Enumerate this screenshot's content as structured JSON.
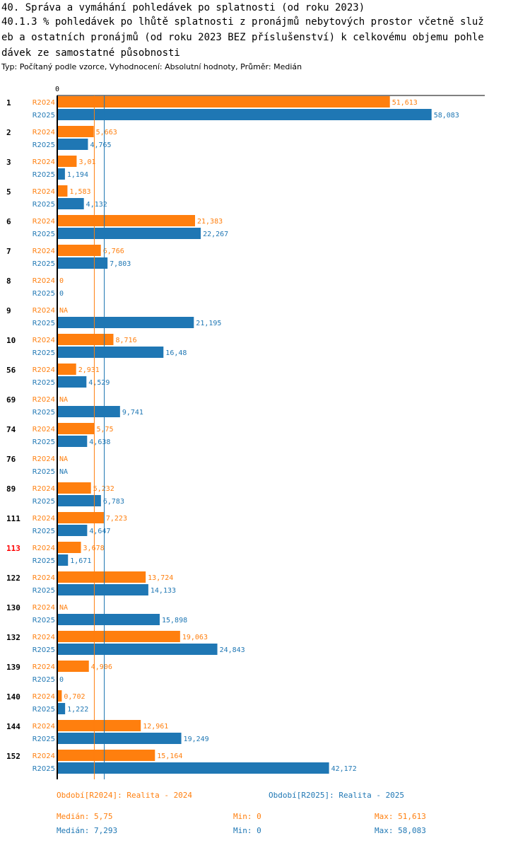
{
  "title_lines": [
    "40. Správa a vymáhání pohledávek po splatnosti (od roku 2023)",
    "40.1.3 % pohledávek po lhůtě splatnosti z pronájmů nebytových prostor včetně služ",
    "eb a ostatních pronájmů (od roku 2023 BEZ příslušenství) k celkovému objemu pohle",
    "dávek ze samostatné působnosti"
  ],
  "subtitle": "Typ: Počítaný podle vzorce, Vyhodnocení: Absolutní hodnoty, Průměr: Medián",
  "colors": {
    "R2024": "#ff7f0e",
    "R2025": "#1f77b4",
    "highlight": "#ff0000",
    "axis": "#000000"
  },
  "chart_data": {
    "type": "bar",
    "orientation": "horizontal",
    "x_axis_zero_label": "0",
    "xlim": [
      0,
      60
    ],
    "series_names": [
      "R2024",
      "R2025"
    ],
    "categories": [
      "1",
      "2",
      "3",
      "5",
      "6",
      "7",
      "8",
      "9",
      "10",
      "56",
      "69",
      "74",
      "76",
      "89",
      "111",
      "113",
      "122",
      "130",
      "132",
      "139",
      "140",
      "144",
      "152"
    ],
    "highlighted_category": "113",
    "series": [
      {
        "name": "R2024",
        "values": [
          51.613,
          5.663,
          3.01,
          1.583,
          21.383,
          6.766,
          0,
          null,
          8.716,
          2.931,
          null,
          5.75,
          null,
          5.232,
          7.223,
          3.678,
          13.724,
          null,
          19.063,
          4.906,
          0.702,
          12.961,
          15.164
        ],
        "labels": [
          "51,613",
          "5,663",
          "3,01",
          "1,583",
          "21,383",
          "6,766",
          "0",
          "NA",
          "8,716",
          "2,931",
          "NA",
          "5,75",
          "NA",
          "5,232",
          "7,223",
          "3,678",
          "13,724",
          "NA",
          "19,063",
          "4,906",
          "0,702",
          "12,961",
          "15,164"
        ]
      },
      {
        "name": "R2025",
        "values": [
          58.083,
          4.765,
          1.194,
          4.132,
          22.267,
          7.803,
          0,
          21.195,
          16.48,
          4.529,
          9.741,
          4.638,
          null,
          6.783,
          4.647,
          1.671,
          14.133,
          15.898,
          24.843,
          0,
          1.222,
          19.249,
          42.172
        ],
        "labels": [
          "58,083",
          "4,765",
          "1,194",
          "4,132",
          "22,267",
          "7,803",
          "0",
          "21,195",
          "16,48",
          "4,529",
          "9,741",
          "4,638",
          "NA",
          "6,783",
          "4,647",
          "1,671",
          "14,133",
          "15,898",
          "24,843",
          "0",
          "1,222",
          "19,249",
          "42,172"
        ]
      }
    ],
    "median_lines": [
      {
        "series": "R2024",
        "value": 5.75
      },
      {
        "series": "R2025",
        "value": 7.293
      }
    ]
  },
  "legend": {
    "r2024": "Období[R2024]: Realita - 2024",
    "r2025": "Období[R2025]: Realita - 2025"
  },
  "stats": {
    "r2024": {
      "median": "Medián: 5,75",
      "min": "Min: 0",
      "max": "Max: 51,613"
    },
    "r2025": {
      "median": "Medián: 7,293",
      "min": "Min: 0",
      "max": "Max: 58,083"
    }
  }
}
